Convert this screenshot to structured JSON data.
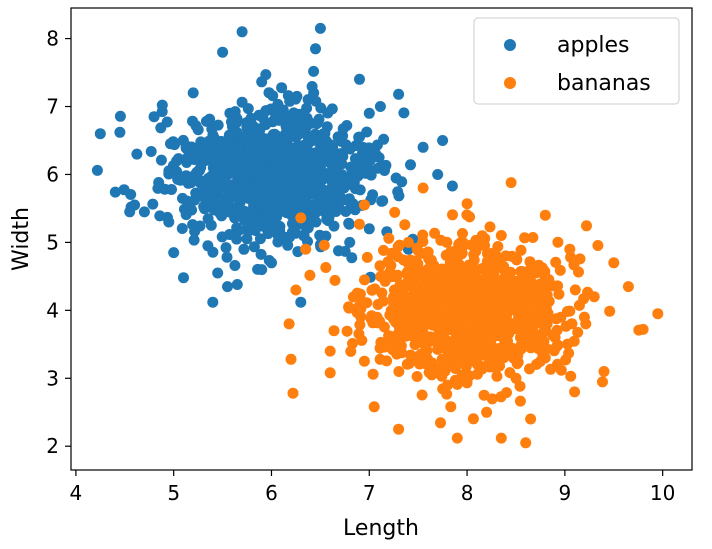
{
  "chart_data": {
    "type": "scatter",
    "xlabel": "Length",
    "ylabel": "Width",
    "xlim": [
      3.95,
      10.3
    ],
    "ylim": [
      1.65,
      8.45
    ],
    "xticks": [
      "4",
      "5",
      "6",
      "7",
      "8",
      "9",
      "10"
    ],
    "yticks": [
      "2",
      "3",
      "4",
      "5",
      "6",
      "7",
      "8"
    ],
    "grid": false,
    "legend_position": "top-right",
    "series": [
      {
        "name": "apples",
        "color": "#1f77b4",
        "center": [
          6.0,
          6.0
        ],
        "std": [
          0.5,
          0.5
        ],
        "count": 1000,
        "points": [
          [
            4.22,
            6.06
          ],
          [
            4.25,
            6.6
          ],
          [
            4.45,
            6.62
          ],
          [
            4.55,
            5.45
          ],
          [
            4.6,
            5.55
          ],
          [
            4.8,
            6.85
          ],
          [
            4.95,
            5.3
          ],
          [
            5.0,
            4.85
          ],
          [
            5.1,
            4.48
          ],
          [
            5.2,
            7.2
          ],
          [
            5.35,
            4.95
          ],
          [
            5.4,
            4.12
          ],
          [
            5.45,
            4.55
          ],
          [
            5.5,
            7.8
          ],
          [
            5.55,
            4.35
          ],
          [
            5.65,
            4.38
          ],
          [
            5.7,
            8.1
          ],
          [
            5.9,
            4.6
          ],
          [
            6.0,
            4.7
          ],
          [
            6.3,
            5.36
          ],
          [
            6.3,
            4.12
          ],
          [
            6.45,
            7.85
          ],
          [
            6.5,
            8.15
          ],
          [
            6.9,
            7.4
          ],
          [
            7.0,
            6.9
          ],
          [
            7.3,
            7.18
          ],
          [
            7.4,
            4.9
          ],
          [
            7.7,
            6.0
          ],
          [
            7.85,
            5.83
          ],
          [
            7.55,
            6.4
          ],
          [
            7.75,
            6.5
          ],
          [
            6.9,
            6.55
          ],
          [
            7.1,
            6.25
          ],
          [
            6.8,
            5.0
          ],
          [
            7.0,
            5.2
          ]
        ]
      },
      {
        "name": "bananas",
        "color": "#ff7f0e",
        "center": [
          8.0,
          4.0
        ],
        "std": [
          0.5,
          0.5
        ],
        "count": 1000,
        "points": [
          [
            6.18,
            3.8
          ],
          [
            6.2,
            3.28
          ],
          [
            6.22,
            2.78
          ],
          [
            6.25,
            4.3
          ],
          [
            6.3,
            5.36
          ],
          [
            6.35,
            4.9
          ],
          [
            6.6,
            3.4
          ],
          [
            6.6,
            3.08
          ],
          [
            6.95,
            5.55
          ],
          [
            7.05,
            2.58
          ],
          [
            7.3,
            2.25
          ],
          [
            7.55,
            5.8
          ],
          [
            7.8,
            2.9
          ],
          [
            7.9,
            2.12
          ],
          [
            8.0,
            5.57
          ],
          [
            8.2,
            2.5
          ],
          [
            8.35,
            2.12
          ],
          [
            8.45,
            5.88
          ],
          [
            8.6,
            2.05
          ],
          [
            8.65,
            2.4
          ],
          [
            8.8,
            5.4
          ],
          [
            8.9,
            3.6
          ],
          [
            9.05,
            4.9
          ],
          [
            9.1,
            2.8
          ],
          [
            9.2,
            3.9
          ],
          [
            9.4,
            3.1
          ],
          [
            9.5,
            4.7
          ],
          [
            9.65,
            4.35
          ],
          [
            9.8,
            3.72
          ],
          [
            9.95,
            3.95
          ],
          [
            7.4,
            5.0
          ],
          [
            8.5,
            3.0
          ],
          [
            8.8,
            3.3
          ],
          [
            9.3,
            4.2
          ],
          [
            7.6,
            4.55
          ]
        ]
      }
    ],
    "legend": [
      "apples",
      "bananas"
    ]
  }
}
